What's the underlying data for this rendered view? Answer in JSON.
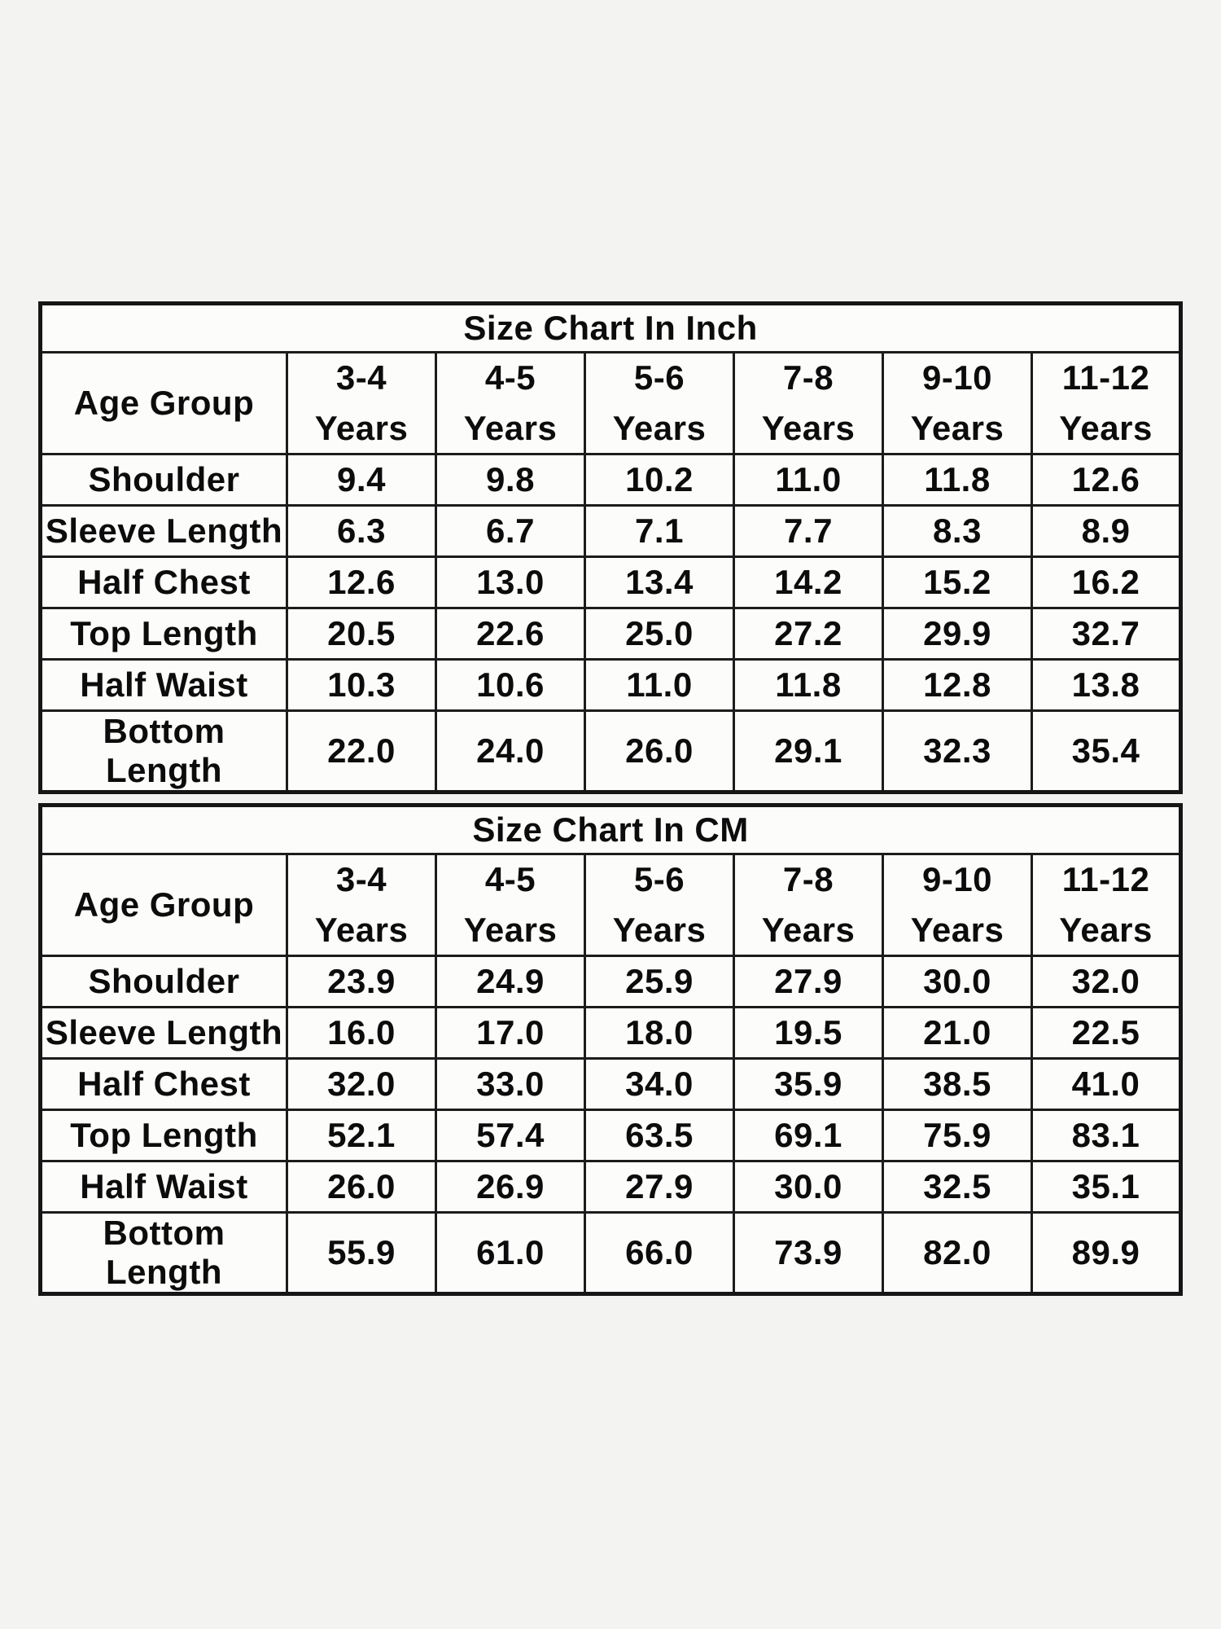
{
  "page": {
    "background_color": "#f3f3f1",
    "cell_background_color": "#fcfcfa",
    "border_color": "#1c1c1c",
    "text_color": "#0c0c0c"
  },
  "chart_data": [
    {
      "type": "table",
      "title": "Size Chart In Inch",
      "corner_header": "Age Group",
      "columns": [
        {
          "range": "3-4",
          "unit": "Years"
        },
        {
          "range": "4-5",
          "unit": "Years"
        },
        {
          "range": "5-6",
          "unit": "Years"
        },
        {
          "range": "7-8",
          "unit": "Years"
        },
        {
          "range": "9-10",
          "unit": "Years"
        },
        {
          "range": "11-12",
          "unit": "Years"
        }
      ],
      "rows": [
        {
          "label": "Shoulder",
          "values": [
            "9.4",
            "9.8",
            "10.2",
            "11.0",
            "11.8",
            "12.6"
          ]
        },
        {
          "label": "Sleeve Length",
          "values": [
            "6.3",
            "6.7",
            "7.1",
            "7.7",
            "8.3",
            "8.9"
          ]
        },
        {
          "label": "Half Chest",
          "values": [
            "12.6",
            "13.0",
            "13.4",
            "14.2",
            "15.2",
            "16.2"
          ]
        },
        {
          "label": "Top Length",
          "values": [
            "20.5",
            "22.6",
            "25.0",
            "27.2",
            "29.9",
            "32.7"
          ]
        },
        {
          "label": "Half Waist",
          "values": [
            "10.3",
            "10.6",
            "11.0",
            "11.8",
            "12.8",
            "13.8"
          ]
        },
        {
          "label": "Bottom Length",
          "values": [
            "22.0",
            "24.0",
            "26.0",
            "29.1",
            "32.3",
            "35.4"
          ]
        }
      ]
    },
    {
      "type": "table",
      "title": "Size Chart In CM",
      "corner_header": "Age Group",
      "columns": [
        {
          "range": "3-4",
          "unit": "Years"
        },
        {
          "range": "4-5",
          "unit": "Years"
        },
        {
          "range": "5-6",
          "unit": "Years"
        },
        {
          "range": "7-8",
          "unit": "Years"
        },
        {
          "range": "9-10",
          "unit": "Years"
        },
        {
          "range": "11-12",
          "unit": "Years"
        }
      ],
      "rows": [
        {
          "label": "Shoulder",
          "values": [
            "23.9",
            "24.9",
            "25.9",
            "27.9",
            "30.0",
            "32.0"
          ]
        },
        {
          "label": "Sleeve Length",
          "values": [
            "16.0",
            "17.0",
            "18.0",
            "19.5",
            "21.0",
            "22.5"
          ]
        },
        {
          "label": "Half Chest",
          "values": [
            "32.0",
            "33.0",
            "34.0",
            "35.9",
            "38.5",
            "41.0"
          ]
        },
        {
          "label": "Top Length",
          "values": [
            "52.1",
            "57.4",
            "63.5",
            "69.1",
            "75.9",
            "83.1"
          ]
        },
        {
          "label": "Half Waist",
          "values": [
            "26.0",
            "26.9",
            "27.9",
            "30.0",
            "32.5",
            "35.1"
          ]
        },
        {
          "label": "Bottom Length",
          "values": [
            "55.9",
            "61.0",
            "66.0",
            "73.9",
            "82.0",
            "89.9"
          ]
        }
      ]
    }
  ]
}
